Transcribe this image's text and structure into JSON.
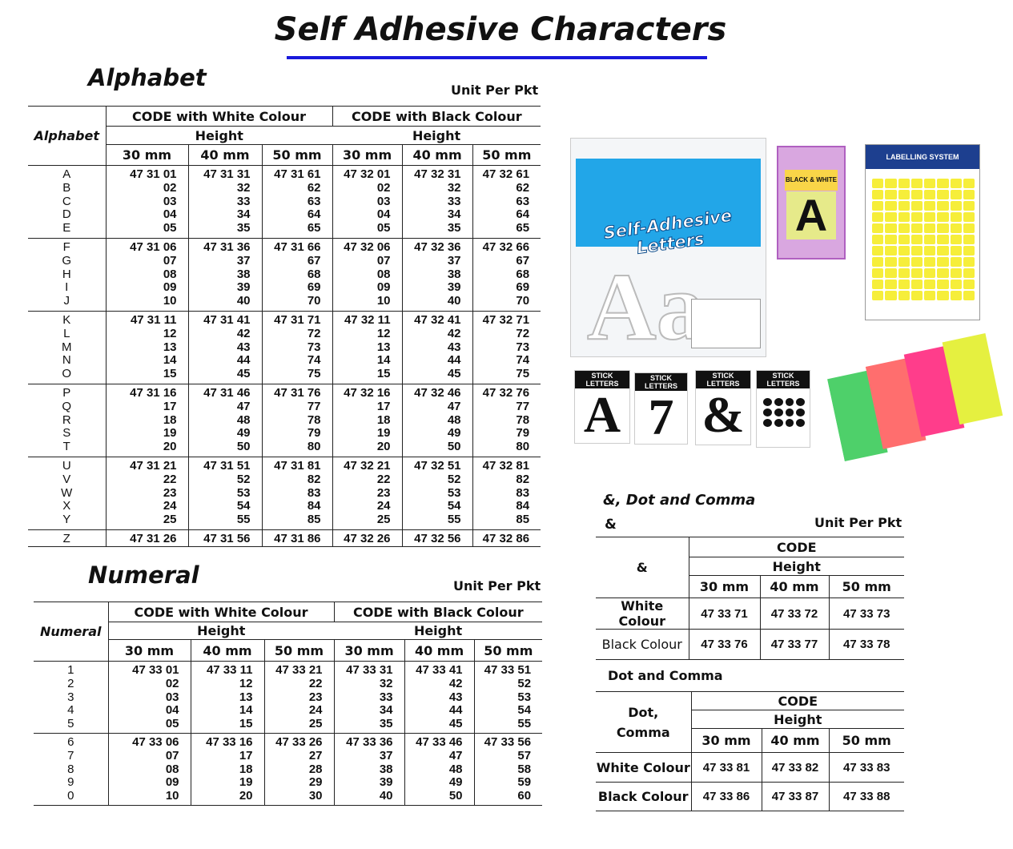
{
  "title": "Self Adhesive Characters",
  "alphabet": {
    "section_title": "Alphabet",
    "unit": "Unit Per Pkt",
    "row_header": "Alphabet",
    "white_header": "CODE with White Colour",
    "black_header": "CODE with Black Colour",
    "height_label": "Height",
    "sizes": [
      "30 mm",
      "40 mm",
      "50 mm",
      "30 mm",
      "40 mm",
      "50 mm"
    ],
    "groups": [
      {
        "labels": [
          "A",
          "B",
          "C",
          "D",
          "E"
        ],
        "rows": [
          [
            "47 31 01",
            "47 31 31",
            "47 31 61",
            "47 32 01",
            "47 32 31",
            "47 32 61"
          ],
          [
            "02",
            "32",
            "62",
            "02",
            "32",
            "62"
          ],
          [
            "03",
            "33",
            "63",
            "03",
            "33",
            "63"
          ],
          [
            "04",
            "34",
            "64",
            "04",
            "34",
            "64"
          ],
          [
            "05",
            "35",
            "65",
            "05",
            "35",
            "65"
          ]
        ]
      },
      {
        "labels": [
          "F",
          "G",
          "H",
          "I",
          "J"
        ],
        "rows": [
          [
            "47 31 06",
            "47 31 36",
            "47 31 66",
            "47 32 06",
            "47 32 36",
            "47 32 66"
          ],
          [
            "07",
            "37",
            "67",
            "07",
            "37",
            "67"
          ],
          [
            "08",
            "38",
            "68",
            "08",
            "38",
            "68"
          ],
          [
            "09",
            "39",
            "69",
            "09",
            "39",
            "69"
          ],
          [
            "10",
            "40",
            "70",
            "10",
            "40",
            "70"
          ]
        ]
      },
      {
        "labels": [
          "K",
          "L",
          "M",
          "N",
          "O"
        ],
        "rows": [
          [
            "47 31 11",
            "47 31 41",
            "47 31 71",
            "47 32 11",
            "47 32 41",
            "47 32 71"
          ],
          [
            "12",
            "42",
            "72",
            "12",
            "42",
            "72"
          ],
          [
            "13",
            "43",
            "73",
            "13",
            "43",
            "73"
          ],
          [
            "14",
            "44",
            "74",
            "14",
            "44",
            "74"
          ],
          [
            "15",
            "45",
            "75",
            "15",
            "45",
            "75"
          ]
        ]
      },
      {
        "labels": [
          "P",
          "Q",
          "R",
          "S",
          "T"
        ],
        "rows": [
          [
            "47 31 16",
            "47 31 46",
            "47 31 76",
            "47 32 16",
            "47 32 46",
            "47 32 76"
          ],
          [
            "17",
            "47",
            "77",
            "17",
            "47",
            "77"
          ],
          [
            "18",
            "48",
            "78",
            "18",
            "48",
            "78"
          ],
          [
            "19",
            "49",
            "79",
            "19",
            "49",
            "79"
          ],
          [
            "20",
            "50",
            "80",
            "20",
            "50",
            "80"
          ]
        ]
      },
      {
        "labels": [
          "U",
          "V",
          "W",
          "X",
          "Y"
        ],
        "rows": [
          [
            "47 31 21",
            "47 31 51",
            "47 31 81",
            "47 32 21",
            "47 32 51",
            "47 32 81"
          ],
          [
            "22",
            "52",
            "82",
            "22",
            "52",
            "82"
          ],
          [
            "23",
            "53",
            "83",
            "23",
            "53",
            "83"
          ],
          [
            "24",
            "54",
            "84",
            "24",
            "54",
            "84"
          ],
          [
            "25",
            "55",
            "85",
            "25",
            "55",
            "85"
          ]
        ]
      },
      {
        "labels": [
          "Z"
        ],
        "rows": [
          [
            "47 31 26",
            "47 31 56",
            "47 31 86",
            "47 32 26",
            "47 32 56",
            "47 32 86"
          ]
        ]
      }
    ]
  },
  "numeral": {
    "section_title": "Numeral",
    "unit": "Unit Per Pkt",
    "row_header": "Numeral",
    "white_header": "CODE with  White Colour",
    "black_header": "CODE with Black Colour",
    "height_label": "Height",
    "sizes": [
      "30 mm",
      "40 mm",
      "50 mm",
      "30 mm",
      "40 mm",
      "50 mm"
    ],
    "groups": [
      {
        "labels": [
          "1",
          "2",
          "3",
          "4",
          "5"
        ],
        "rows": [
          [
            "47 33 01",
            "47 33 11",
            "47 33 21",
            "47 33 31",
            "47 33 41",
            "47 33 51"
          ],
          [
            "02",
            "12",
            "22",
            "32",
            "42",
            "52"
          ],
          [
            "03",
            "13",
            "23",
            "33",
            "43",
            "53"
          ],
          [
            "04",
            "14",
            "24",
            "34",
            "44",
            "54"
          ],
          [
            "05",
            "15",
            "25",
            "35",
            "45",
            "55"
          ]
        ]
      },
      {
        "labels": [
          "6",
          "7",
          "8",
          "9",
          "0"
        ],
        "rows": [
          [
            "47 33 06",
            "47 33 16",
            "47 33 26",
            "47 33 36",
            "47 33 46",
            "47 33 56"
          ],
          [
            "07",
            "17",
            "27",
            "37",
            "47",
            "57"
          ],
          [
            "08",
            "18",
            "28",
            "38",
            "48",
            "58"
          ],
          [
            "09",
            "19",
            "29",
            "39",
            "49",
            "59"
          ],
          [
            "10",
            "20",
            "30",
            "40",
            "50",
            "60"
          ]
        ]
      }
    ]
  },
  "special": {
    "section_title": "&, Dot and Comma",
    "ampersand": {
      "subtitle": "&",
      "unit": "Unit Per Pkt",
      "row_header": "&",
      "code_label": "CODE",
      "height_label": "Height",
      "sizes": [
        "30 mm",
        "40 mm",
        "50 mm"
      ],
      "rows": [
        {
          "label": "White Colour",
          "codes": [
            "47 33 71",
            "47 33 72",
            "47 33 73"
          ]
        },
        {
          "label": "Black Colour",
          "codes": [
            "47 33 76",
            "47 33 77",
            "47 33 78"
          ]
        }
      ]
    },
    "dot_comma": {
      "subtitle": "Dot and Comma",
      "row_header_1": "Dot,",
      "row_header_2": "Comma",
      "code_label": "CODE",
      "height_label": "Height",
      "sizes": [
        "30 mm",
        "40 mm",
        "50 mm"
      ],
      "rows": [
        {
          "label": "White Colour",
          "codes": [
            "47 33 81",
            "47 33 82",
            "47 33 83"
          ]
        },
        {
          "label": "Black Colour",
          "codes": [
            "47 33 86",
            "47 33 87",
            "47 33 88"
          ]
        }
      ]
    }
  },
  "images": {
    "product_1": "Self-Adhesive Letters",
    "product_2": "BLACK & WHITE",
    "product_3": "LABELLING SYSTEM",
    "stick_letters": [
      "STICK LETTERS",
      "STICK LETTERS",
      "STICK LETTERS",
      "STICK LETTERS"
    ]
  }
}
